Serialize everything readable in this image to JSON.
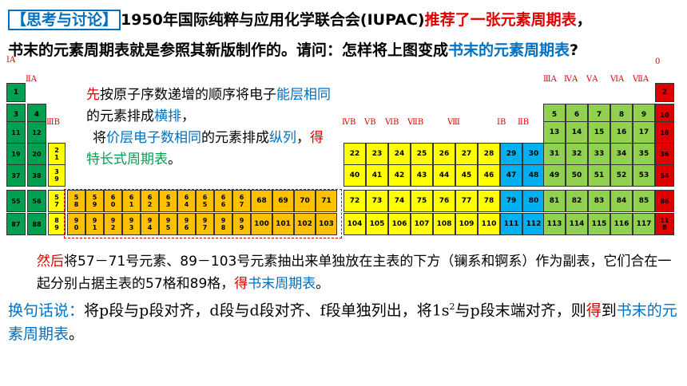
{
  "heading": {
    "tag": "【思考与讨论】",
    "l1_a": "1950年国际纯粹与应用化学联合会(IUPAC)",
    "l1_b": "推荐了一张元素周期表",
    "l1_c": "，",
    "l2_a": "书末的元素周期表就是参照其新版制作的。请问：怎样将上图变成",
    "l2_b": "书末的元素周期表",
    "l2_c": "?"
  },
  "note": {
    "p1": "先",
    "p2": "按原子序数递增的顺序将电子",
    "p3": "能层相同",
    "p4": "的元素排成",
    "p5": "横排",
    "p6": "，",
    "p7": "将",
    "p8": "价层电子数相同",
    "p9": "的元素排成",
    "p10": "纵列",
    "p11": "，",
    "p12": "得",
    "p13": "特长式周期表",
    "p14": "。"
  },
  "para1": {
    "a": "然后",
    "b": "将57－71号元素、89－103号元素抽出来单独放在主表的下方（镧系和锕系）作为副表，它们合在一起分别占据主表的57格和89格，",
    "c": "得",
    "d": "书末周期表",
    "e": "。"
  },
  "para2": {
    "a": "换句话说：",
    "b": "将p段与p段对齐，d段与d段对齐、f段单独列出，将1s",
    "sup": "2",
    "c": "与p段末端对齐，则",
    "d": "得",
    "e": "到",
    "f": "书末的元素周期表",
    "g": "。"
  },
  "group_labels": [
    "ⅠA",
    "ⅡA",
    "ⅢB",
    "ⅣB",
    "ⅤB",
    "ⅥB",
    "ⅦB",
    "Ⅷ",
    "ⅠB",
    "ⅡB",
    "ⅢA",
    "ⅣA",
    "ⅤA",
    "ⅥA",
    "ⅦA",
    "0"
  ],
  "colors": {
    "s": "#00a050",
    "s_he": "#e00000",
    "f": "#ffc000",
    "d": "#ffff00",
    "ds": "#00b0f0",
    "p": "#92d050",
    "p0": "#e00000"
  },
  "rows": [
    [
      "1"
    ],
    [
      "3",
      "4"
    ],
    [
      "11",
      "12"
    ],
    [
      "19",
      "20",
      "21"
    ],
    [
      "37",
      "38",
      "39"
    ],
    [
      "55",
      "56",
      "57",
      "58",
      "59",
      "60",
      "61",
      "62",
      "63",
      "64",
      "65",
      "66",
      "67",
      "68",
      "69",
      "70",
      "71"
    ],
    [
      "87",
      "88",
      "89",
      "90",
      "91",
      "92",
      "93",
      "94",
      "95",
      "96",
      "97",
      "98",
      "99",
      "100",
      "101",
      "102",
      "103"
    ]
  ],
  "p_rows": [
    [
      "2"
    ],
    [
      "5",
      "6",
      "7",
      "8",
      "9",
      "10"
    ],
    [
      "13",
      "14",
      "15",
      "16",
      "17",
      "18"
    ],
    [
      "31",
      "32",
      "33",
      "34",
      "35",
      "36"
    ],
    [
      "49",
      "50",
      "51",
      "52",
      "53",
      "54"
    ],
    [
      "81",
      "82",
      "83",
      "84",
      "85",
      "86"
    ],
    [
      "113",
      "114",
      "115",
      "116",
      "117",
      "118"
    ]
  ],
  "d_rows": [
    [
      "22",
      "23",
      "24",
      "25",
      "26",
      "27",
      "28",
      "29",
      "30"
    ],
    [
      "40",
      "41",
      "42",
      "43",
      "44",
      "45",
      "46",
      "47",
      "48"
    ],
    [
      "72",
      "73",
      "74",
      "75",
      "76",
      "77",
      "78",
      "79",
      "80"
    ],
    [
      "104",
      "105",
      "106",
      "107",
      "108",
      "109",
      "110",
      "111",
      "112"
    ]
  ]
}
